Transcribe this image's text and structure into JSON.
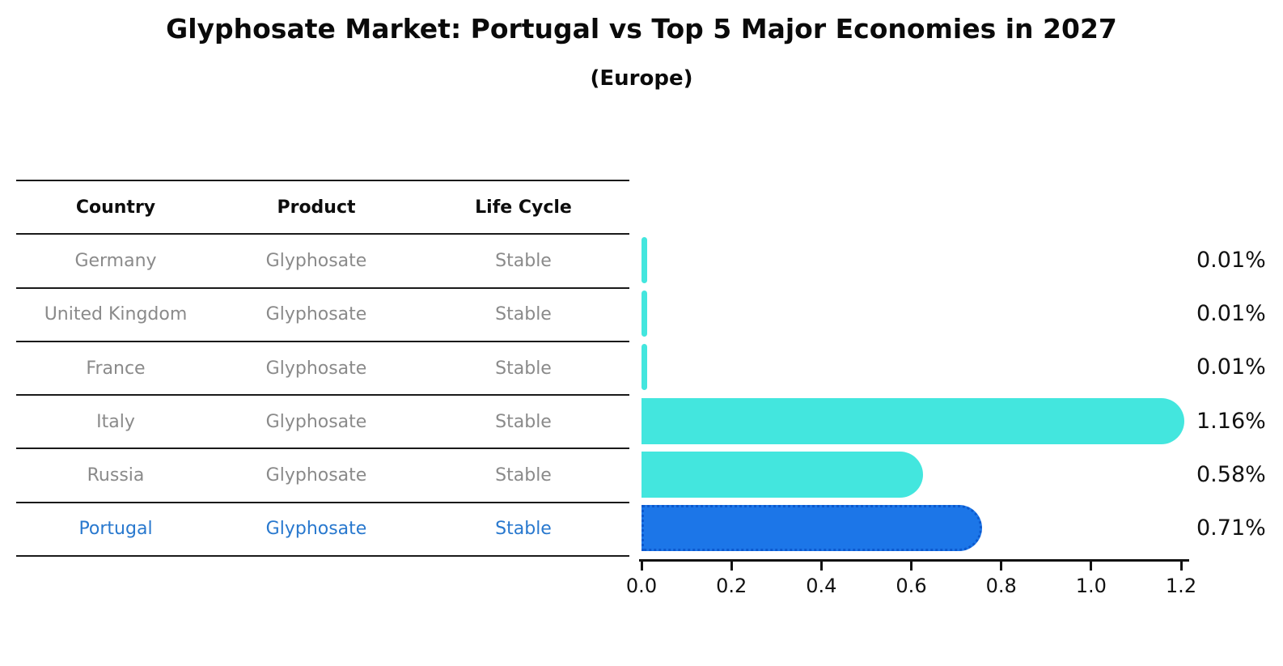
{
  "title": "Glyphosate Market: Portugal vs Top 5 Major Economies in 2027",
  "subtitle": "(Europe)",
  "table": {
    "headers": [
      "Country",
      "Product",
      "Life Cycle"
    ],
    "rows": [
      {
        "country": "Germany",
        "product": "Glyphosate",
        "life_cycle": "Stable",
        "highlight": false
      },
      {
        "country": "United Kingdom",
        "product": "Glyphosate",
        "life_cycle": "Stable",
        "highlight": false
      },
      {
        "country": "France",
        "product": "Glyphosate",
        "life_cycle": "Stable",
        "highlight": false
      },
      {
        "country": "Italy",
        "product": "Glyphosate",
        "life_cycle": "Stable",
        "highlight": false
      },
      {
        "country": "Russia",
        "product": "Glyphosate",
        "life_cycle": "Stable",
        "highlight": false
      },
      {
        "country": "Portugal",
        "product": "Glyphosate",
        "life_cycle": "Stable",
        "highlight": true
      }
    ]
  },
  "chart_data": {
    "type": "bar",
    "orientation": "horizontal",
    "categories": [
      "Germany",
      "United Kingdom",
      "France",
      "Italy",
      "Russia",
      "Portugal"
    ],
    "values": [
      0.01,
      0.01,
      0.01,
      1.16,
      0.58,
      0.71
    ],
    "value_labels": [
      "0.01%",
      "0.01%",
      "0.01%",
      "1.16%",
      "0.58%",
      "0.71%"
    ],
    "title": "Glyphosate Market: Portugal vs Top 5 Major Economies in 2027",
    "subtitle": "(Europe)",
    "xlabel": "",
    "ylabel": "",
    "xlim": [
      0.0,
      1.2
    ],
    "x_ticks": [
      "0.0",
      "0.2",
      "0.4",
      "0.6",
      "0.8",
      "1.0",
      "1.2"
    ],
    "grid": false,
    "legend": false,
    "highlighted_category": "Portugal"
  },
  "colors": {
    "bar_default": "#43e6de",
    "bar_highlight": "#1c76e8",
    "bar_highlight_edge": "#0c59ce",
    "highlight_text": "#2878ce",
    "row_text": "#8a8a8a",
    "header_text": "#0d0d0d",
    "axis_color": "#111111"
  }
}
